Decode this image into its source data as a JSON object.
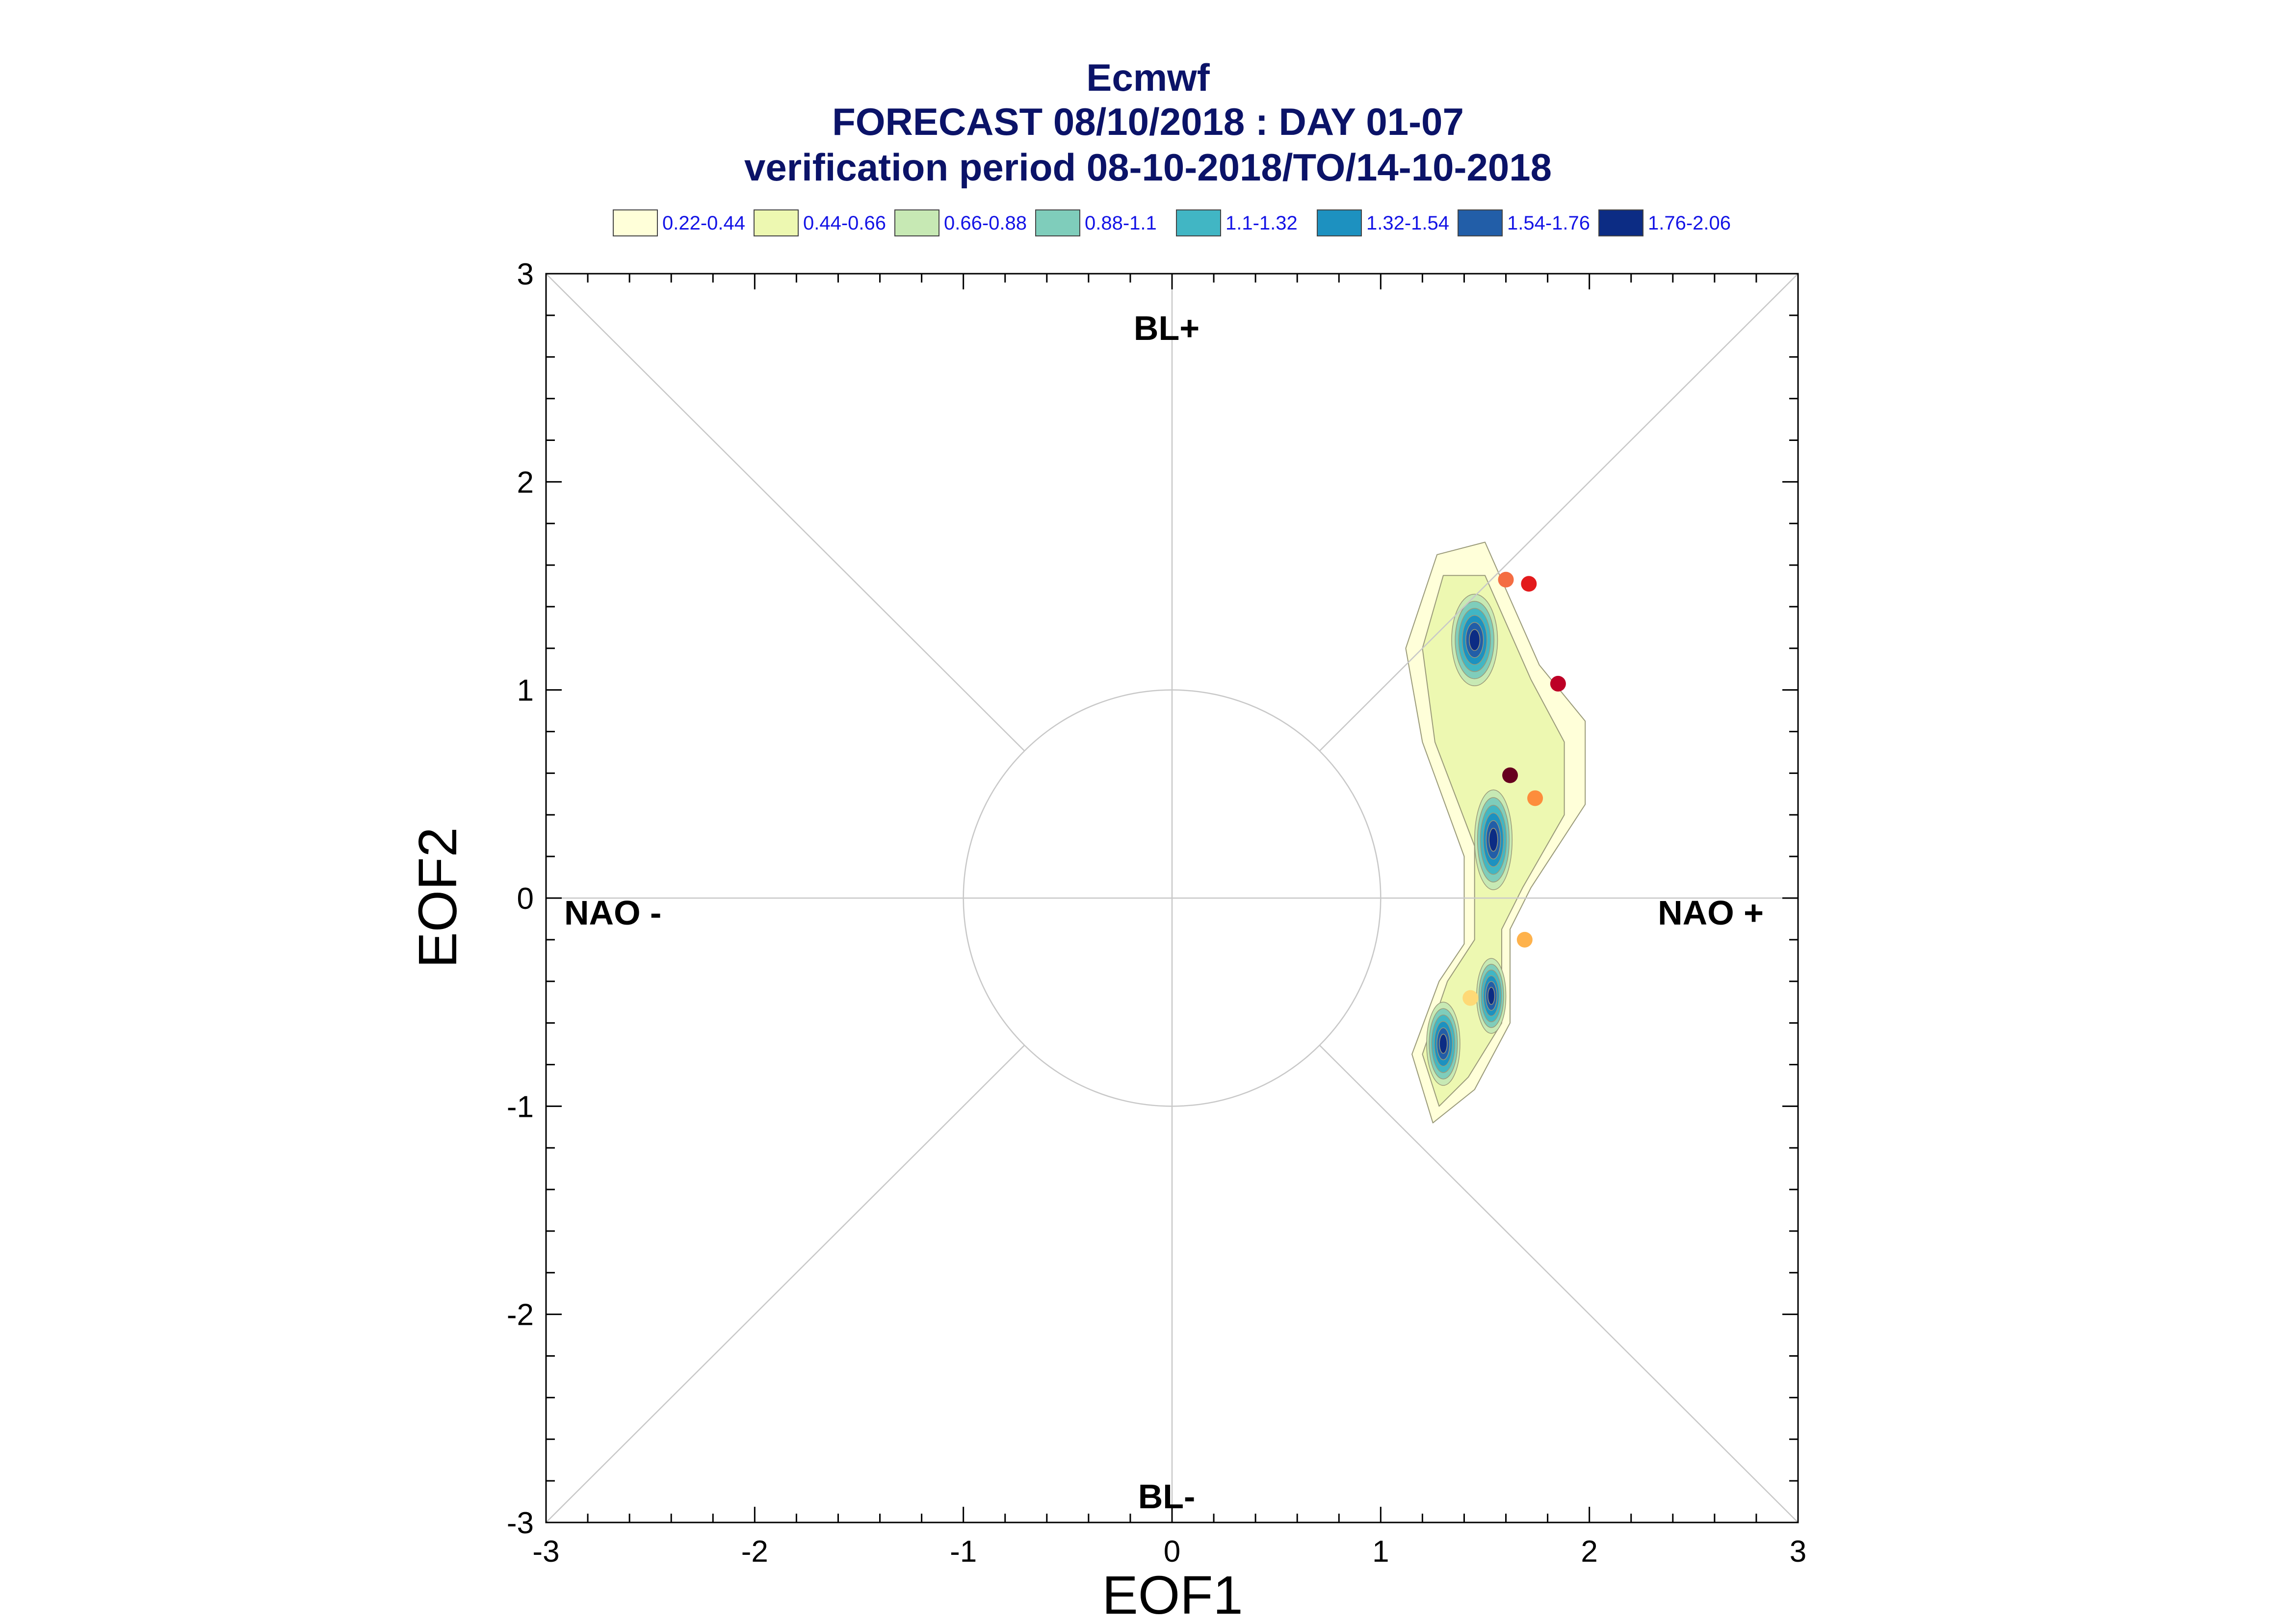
{
  "chart_data": {
    "type": "scatter",
    "title": "Ecmwf",
    "subtitle": "FORECAST 08/10/2018 : DAY 01-07",
    "subtitle2": "verification period 08-10-2018/TO/14-10-2018",
    "xlabel": "EOF1",
    "ylabel": "EOF2",
    "xlim": [
      -3,
      3
    ],
    "ylim": [
      -3,
      3
    ],
    "xticks": [
      "-3",
      "-2",
      "-1",
      "0",
      "1",
      "2",
      "3"
    ],
    "yticks": [
      "-3",
      "-2",
      "-1",
      "0",
      "1",
      "2",
      "3"
    ],
    "regime_labels": {
      "top": "BL+",
      "bottom": "BL-",
      "left": "NAO -",
      "right": "NAO +"
    },
    "legend": [
      {
        "label": "0.22-0.44",
        "color": "#ffffd9"
      },
      {
        "label": "0.44-0.66",
        "color": "#edf8b1"
      },
      {
        "label": "0.66-0.88",
        "color": "#c7e9b4"
      },
      {
        "label": "0.88-1.1",
        "color": "#7fcdbb"
      },
      {
        "label": "1.1-1.32",
        "color": "#41b6c4"
      },
      {
        "label": "1.32-1.54",
        "color": "#1d91c0"
      },
      {
        "label": "1.54-1.76",
        "color": "#225ea8"
      },
      {
        "label": "1.76-2.06",
        "color": "#0c2c84"
      }
    ],
    "density_clusters": [
      {
        "cx": 1.45,
        "cy": 1.24,
        "sx": 0.11,
        "sy": 0.22
      },
      {
        "cx": 1.54,
        "cy": 0.28,
        "sx": 0.09,
        "sy": 0.24
      },
      {
        "cx": 1.53,
        "cy": -0.47,
        "sx": 0.07,
        "sy": 0.18
      },
      {
        "cx": 1.3,
        "cy": -0.7,
        "sx": 0.08,
        "sy": 0.2
      }
    ],
    "points": [
      {
        "x": 1.6,
        "y": 1.53,
        "color": "#f46d43"
      },
      {
        "x": 1.71,
        "y": 1.51,
        "color": "#e31a1c"
      },
      {
        "x": 1.85,
        "y": 1.03,
        "color": "#bd0026"
      },
      {
        "x": 1.62,
        "y": 0.59,
        "color": "#67001f"
      },
      {
        "x": 1.74,
        "y": 0.48,
        "color": "#fd8d3c"
      },
      {
        "x": 1.69,
        "y": -0.2,
        "color": "#feb24c"
      },
      {
        "x": 1.43,
        "y": -0.48,
        "color": "#fed976"
      }
    ],
    "reference_circle_radius": 1,
    "grid": false
  }
}
